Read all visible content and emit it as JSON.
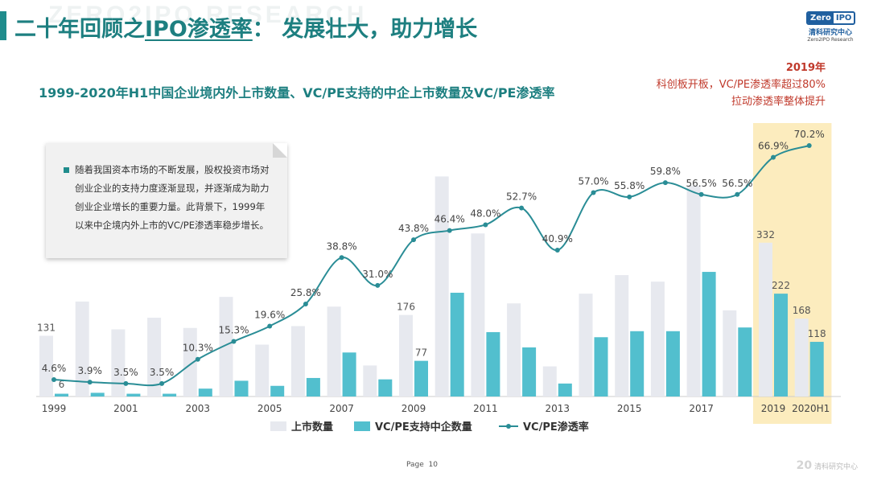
{
  "header": {
    "watermark": "ZERO2IPO RESEARCH",
    "title_part1": "二十年回顾之",
    "title_part2": "IPO渗透率",
    "title_part3": "： 发展壮大，助力增长"
  },
  "logo": {
    "badge_left": "Zero",
    "badge_right": "IPO",
    "name_cn": "清科研究中心",
    "name_en": "Zero2IPO Research"
  },
  "annotation": {
    "year": "2019年",
    "line1": "科创板开板，VC/PE渗透率超过80%",
    "line2": "拉动渗透率整体提升"
  },
  "textbox": {
    "text": "随着我国资本市场的不断发展，股权投资市场对创业企业的支持力度逐渐显现，并逐渐成为助力创业企业增长的重要力量。此背景下，1999年以来中企境内外上市的VC/PE渗透率稳步增长。"
  },
  "footer": {
    "page_label": "Page",
    "page_number": "10",
    "logo_text": "清科研究中心",
    "logo_mark": "20"
  },
  "colors": {
    "teal": "#1d7f80",
    "listed": "#e7e9ef",
    "vcpe": "#52bfce",
    "rate_line": "#2a8d96",
    "highlight": "#fcecbe",
    "annotation": "#c0392b"
  },
  "chart_data": {
    "type": "bar",
    "title": "1999-2020年H1中国企业境内外上市数量、VC/PE支持的中企上市数量及VC/PE渗透率",
    "categories": [
      "1999",
      "2000",
      "2001",
      "2002",
      "2003",
      "2004",
      "2005",
      "2006",
      "2007",
      "2008",
      "2009",
      "2010",
      "2011",
      "2012",
      "2013",
      "2014",
      "2015",
      "2016",
      "2017",
      "2018",
      "2019",
      "2020H1"
    ],
    "x_tick_labels": [
      "1999",
      "",
      "2001",
      "",
      "2003",
      "",
      "2005",
      "",
      "2007",
      "",
      "2009",
      "",
      "2011",
      "",
      "2013",
      "",
      "2015",
      "",
      "2017",
      "",
      "2019",
      "2020H1"
    ],
    "series": [
      {
        "name": "上市数量",
        "kind": "bar",
        "values": [
          131,
          205,
          145,
          170,
          148,
          215,
          112,
          152,
          194,
          67,
          176,
          475,
          352,
          201,
          65,
          222,
          262,
          248,
          455,
          186,
          332,
          168
        ],
        "labels": {
          "0": "131",
          "10": "176",
          "20": "332",
          "21": "168"
        }
      },
      {
        "name": "VC/PE支持中企数量",
        "kind": "bar",
        "values": [
          6,
          8,
          6,
          6,
          17,
          34,
          23,
          40,
          95,
          37,
          77,
          224,
          139,
          106,
          28,
          128,
          141,
          141,
          269,
          149,
          222,
          118
        ],
        "labels": {
          "0": "6",
          "10": "77",
          "20": "222",
          "21": "118"
        }
      },
      {
        "name": "VC/PE渗透率",
        "kind": "line",
        "unit": "%",
        "values": [
          4.6,
          3.9,
          3.5,
          3.5,
          10.3,
          15.3,
          19.6,
          25.8,
          38.8,
          31.0,
          43.8,
          46.4,
          48.0,
          52.7,
          40.9,
          57.0,
          55.8,
          59.8,
          56.5,
          56.5,
          66.9,
          70.2
        ],
        "labels": {
          "0": "4.6%",
          "1": "3.9%",
          "2": "3.5%",
          "3": "3.5%",
          "4": "10.3%",
          "5": "15.3%",
          "6": "19.6%",
          "7": "25.8%",
          "8": "38.8%",
          "9": "31.0%",
          "10": "43.8%",
          "11": "46.4%",
          "12": "48.0%",
          "13": "52.7%",
          "14": "40.9%",
          "15": "57.0%",
          "16": "55.8%",
          "17": "59.8%",
          "18": "56.5%",
          "19": "56.5%",
          "20": "66.9%",
          "21": "70.2%"
        }
      }
    ],
    "highlight_categories": [
      "2019",
      "2020H1"
    ],
    "bar_ylim": [
      0,
      500
    ],
    "rate_ylim": [
      0,
      80
    ],
    "legend_position": "bottom",
    "grid": false
  }
}
